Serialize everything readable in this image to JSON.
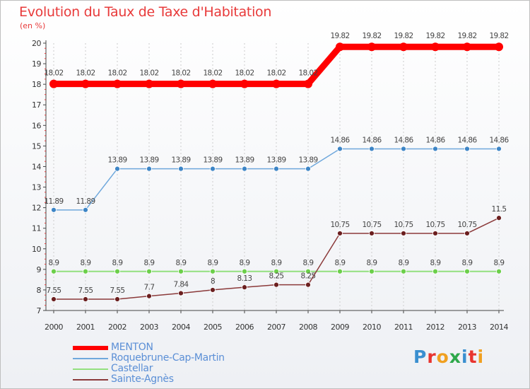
{
  "colors": {
    "title": "#e83a3a",
    "axis": "#444444",
    "grid": "#cccccc"
  },
  "logo": {
    "text": "Proxiti",
    "letter_colors": [
      "#3a8fd0",
      "#e8342f",
      "#f0a020",
      "#2ea84a",
      "#3a8fd0",
      "#e8342f",
      "#f0a020"
    ]
  },
  "chart_data": {
    "type": "line",
    "title": "Evolution du Taux de Taxe d'Habitation",
    "subtitle": "(en %)",
    "x": [
      "2000",
      "2001",
      "2002",
      "2003",
      "2004",
      "2005",
      "2006",
      "2007",
      "2008",
      "2009",
      "2010",
      "2011",
      "2012",
      "2013",
      "2014"
    ],
    "yticks": [
      "7",
      "8",
      "9",
      "10",
      "11",
      "12",
      "13",
      "14",
      "15",
      "16",
      "17",
      "18",
      "19",
      "20"
    ],
    "ylim": [
      7,
      20
    ],
    "series": [
      {
        "name": "MENTON",
        "color": "#ff0000",
        "marker_color": "#ff0000",
        "values": [
          18.02,
          18.02,
          18.02,
          18.02,
          18.02,
          18.02,
          18.02,
          18.02,
          18.02,
          19.82,
          19.82,
          19.82,
          19.82,
          19.82,
          19.82
        ],
        "labels": [
          "18.02",
          "18.02",
          "18.02",
          "18.02",
          "18.02",
          "18.02",
          "18.02",
          "18.02",
          "18.02",
          "19.82",
          "19.82",
          "19.82",
          "19.82",
          "19.82",
          "19.82"
        ]
      },
      {
        "name": "Roquebrune-Cap-Martin",
        "color": "#6fa8dc",
        "marker_color": "#3d85c6",
        "values": [
          11.89,
          11.89,
          13.89,
          13.89,
          13.89,
          13.89,
          13.89,
          13.89,
          13.89,
          14.86,
          14.86,
          14.86,
          14.86,
          14.86,
          14.86
        ],
        "labels": [
          "11.89",
          "11.89",
          "13.89",
          "13.89",
          "13.89",
          "13.89",
          "13.89",
          "13.89",
          "13.89",
          "14.86",
          "14.86",
          "14.86",
          "14.86",
          "14.86",
          "14.86"
        ]
      },
      {
        "name": "Castellar",
        "color": "#93e07f",
        "marker_color": "#6ccf4a",
        "values": [
          8.9,
          8.9,
          8.9,
          8.9,
          8.9,
          8.9,
          8.9,
          8.9,
          8.9,
          8.9,
          8.9,
          8.9,
          8.9,
          8.9,
          8.9
        ],
        "labels": [
          "8.9",
          "8.9",
          "8.9",
          "8.9",
          "8.9",
          "8.9",
          "8.9",
          "8.9",
          "8.9",
          "8.9",
          "8.9",
          "8.9",
          "8.9",
          "8.9",
          "8.9"
        ]
      },
      {
        "name": "Sainte-Agnès",
        "color": "#8b3a3a",
        "marker_color": "#6b1f1f",
        "values": [
          7.55,
          7.55,
          7.55,
          7.7,
          7.84,
          8,
          8.13,
          8.25,
          8.25,
          10.75,
          10.75,
          10.75,
          10.75,
          10.75,
          11.5
        ],
        "labels": [
          "7.55",
          "7.55",
          "7.55",
          "7.7",
          "7.84",
          "8",
          "8.13",
          "8.25",
          "8.25",
          "10.75",
          "10.75",
          "10.75",
          "10.75",
          "10.75",
          "11.5"
        ]
      }
    ],
    "legend_position": "bottom-left"
  }
}
